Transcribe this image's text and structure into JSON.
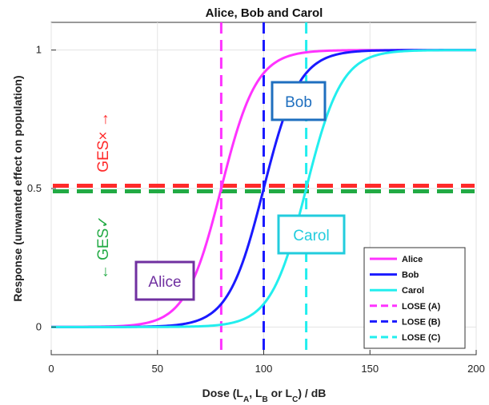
{
  "chart_data": {
    "type": "line",
    "title": "Alice, Bob and Carol",
    "xlabel": "Dose (L_A, L_B or L_C) / dB",
    "xlabel_parts": {
      "pre": "Dose (L",
      "a": "A",
      "sep1": ", L",
      "b": "B",
      "sep2": " or L",
      "c": "C",
      "post": ") / dB"
    },
    "ylabel": "Response (unwanted effect on population)",
    "xlim": [
      0,
      200
    ],
    "ylim": [
      -0.1,
      1.1
    ],
    "x_ticks": [
      0,
      50,
      100,
      150,
      200
    ],
    "y_ticks": [
      0,
      0.5,
      1
    ],
    "grid": true,
    "legend_position": "bottom-right",
    "series": [
      {
        "name": "Alice",
        "kind": "logistic",
        "midpoint": 80,
        "slope": 0.12,
        "color": "#ff33ff",
        "style": "solid"
      },
      {
        "name": "Bob",
        "kind": "logistic",
        "midpoint": 100,
        "slope": 0.12,
        "color": "#1a1aff",
        "style": "solid"
      },
      {
        "name": "Carol",
        "kind": "logistic",
        "midpoint": 120,
        "slope": 0.12,
        "color": "#22eeee",
        "style": "solid"
      },
      {
        "name": "LOSE (A)",
        "kind": "vline",
        "x": 80,
        "color": "#ff33ff",
        "style": "dashed"
      },
      {
        "name": "LOSE (B)",
        "kind": "vline",
        "x": 100,
        "color": "#1a1aff",
        "style": "dashed"
      },
      {
        "name": "LOSE (C)",
        "kind": "vline",
        "x": 120,
        "color": "#22eeee",
        "style": "dashed"
      }
    ],
    "threshold_lines": [
      {
        "y": 0.51,
        "color": "#ff2a2a",
        "style": "dashed"
      },
      {
        "y": 0.49,
        "color": "#22aa44",
        "style": "dashed"
      }
    ],
    "annotations": {
      "ges_up": {
        "text": "GES× →",
        "color": "#ff2a2a"
      },
      "ges_down": {
        "text": "← GES✓",
        "color": "#22aa44"
      },
      "callouts": [
        {
          "id": "alice",
          "text": "Alice",
          "color": "#7030a0"
        },
        {
          "id": "bob",
          "text": "Bob",
          "color": "#1f6fbf"
        },
        {
          "id": "carol",
          "text": "Carol",
          "color": "#22ccdd"
        }
      ]
    }
  }
}
